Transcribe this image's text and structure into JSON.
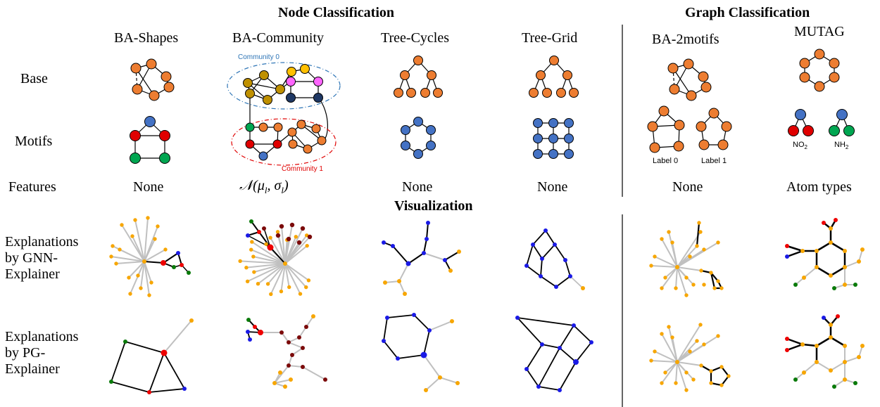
{
  "headers": {
    "node_classification": "Node Classification",
    "graph_classification": "Graph Classification",
    "visualization": "Visualization"
  },
  "columns": [
    "BA-Shapes",
    "BA-Community",
    "Tree-Cycles",
    "Tree-Grid",
    "BA-2motifs",
    "MUTAG"
  ],
  "rows": {
    "base": "Base",
    "motifs": "Motifs",
    "features": "Features",
    "gnn": "Explanations\nby GNN-\nExplainer",
    "pg": "Explanations\nby PG-\nExplainer"
  },
  "features": [
    "None",
    "𝒩(μ",
    "None",
    "None",
    "None",
    "Atom types"
  ],
  "features_math": {
    "l1": "l",
    "sep": ", σ",
    "l2": "l",
    "close": ")"
  },
  "annotations": {
    "community0": "Community 0",
    "community1": "Community 1",
    "label0": "Label 0",
    "label1": "Label 1",
    "no2": "NO",
    "no2_sub": "2",
    "nh2": "NH",
    "nh2_sub": "2"
  },
  "colors": {
    "orange": "#ED7D31",
    "blue": "#4472C4",
    "red": "#E00000",
    "green": "#00A651",
    "olive": "#BF9000",
    "pink": "#FF66FF",
    "navy": "#1F3864",
    "yellow": "#FFC000",
    "viz_orange": "#F7A600",
    "viz_blue": "#1A1AE6",
    "viz_red": "#EE0000",
    "viz_green": "#0A7A0A",
    "viz_maroon": "#7B0A0A",
    "gray_edge": "#C0C0C0",
    "community0": "#2E75B6",
    "community1": "#E00000"
  }
}
